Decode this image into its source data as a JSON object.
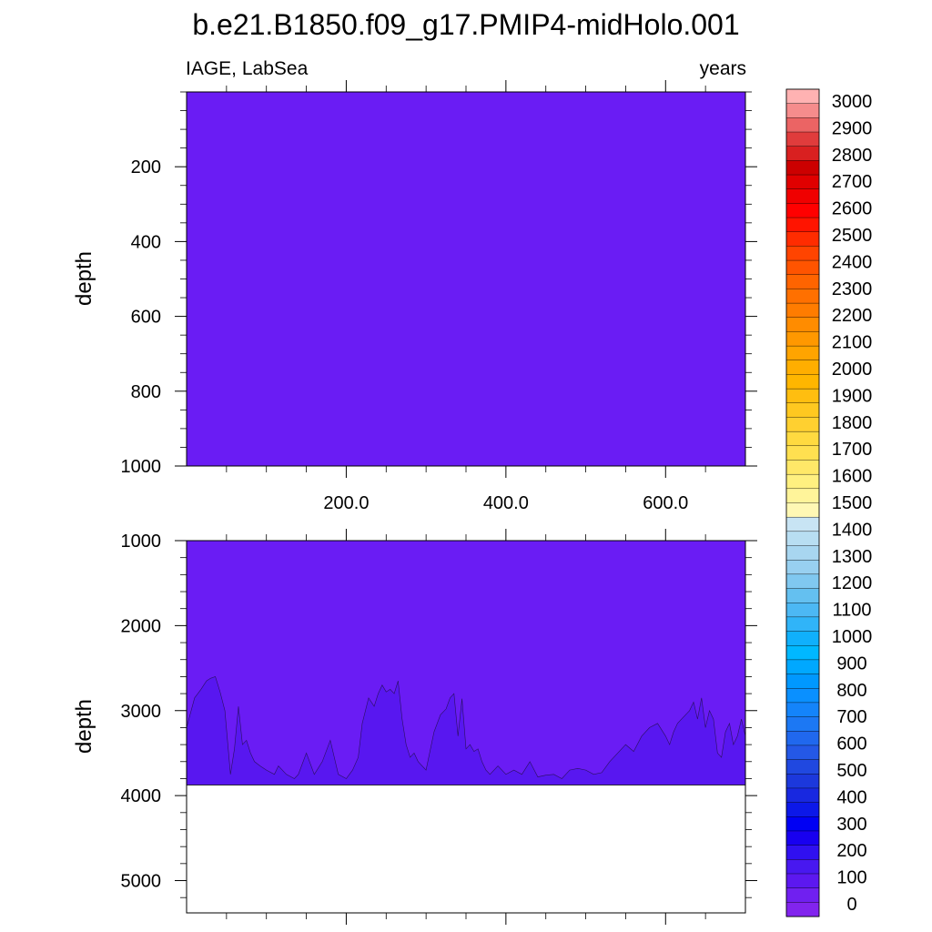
{
  "chart_data": {
    "type": "heatmap",
    "title": "b.e21.B1850.f09_g17.PMIP4-midHolo.001",
    "left_label": "IAGE, LabSea",
    "right_label": "years",
    "fill_color": "#6a1cf4",
    "deep_fill_color": "#5817f0",
    "missing_color": "#ffffff",
    "x": {
      "label": "",
      "range": [
        0,
        700
      ],
      "major_ticks": [
        200.0,
        400.0,
        600.0
      ],
      "tick_labels": [
        "200.0",
        "400.0",
        "600.0"
      ],
      "minor_ticks": [
        50,
        100,
        150,
        250,
        300,
        350,
        450,
        500,
        550,
        650
      ]
    },
    "panels": [
      {
        "name": "upper",
        "ylabel": "depth",
        "ylim": [
          0,
          1000
        ],
        "y_ticks": [
          200,
          400,
          600,
          800,
          1000
        ],
        "y_tick_labels": [
          "200",
          "400",
          "600",
          "800",
          "1000"
        ],
        "y_minor_step": 50
      },
      {
        "name": "lower",
        "ylabel": "depth",
        "ylim": [
          1000,
          5380
        ],
        "y_ticks": [
          1000,
          2000,
          3000,
          4000,
          5000
        ],
        "y_tick_labels": [
          "1000",
          "2000",
          "3000",
          "4000",
          "5000"
        ],
        "y_minor_step": 200,
        "data_bottom_depth": 3875,
        "contour_100": {
          "level": 100,
          "years": [
            0,
            10,
            18,
            25,
            30,
            36,
            42,
            48,
            55,
            60,
            65,
            70,
            75,
            80,
            85,
            92,
            100,
            110,
            115,
            125,
            135,
            140,
            150,
            160,
            170,
            180,
            190,
            200,
            208,
            215,
            220,
            228,
            235,
            240,
            245,
            250,
            255,
            260,
            265,
            270,
            275,
            280,
            285,
            290,
            300,
            310,
            318,
            325,
            330,
            335,
            340,
            345,
            350,
            355,
            360,
            365,
            370,
            375,
            380,
            390,
            400,
            410,
            420,
            430,
            440,
            450,
            460,
            470,
            480,
            490,
            500,
            510,
            520,
            530,
            540,
            550,
            560,
            570,
            580,
            590,
            600,
            605,
            610,
            615,
            620,
            625,
            630,
            635,
            640,
            645,
            650,
            655,
            660,
            665,
            670,
            675,
            680,
            685,
            690,
            695,
            700
          ],
          "depth": [
            3200,
            2850,
            2750,
            2650,
            2620,
            2600,
            2780,
            3000,
            3750,
            3450,
            2950,
            3400,
            3350,
            3500,
            3600,
            3650,
            3700,
            3750,
            3650,
            3750,
            3800,
            3750,
            3500,
            3750,
            3600,
            3350,
            3750,
            3800,
            3700,
            3550,
            3150,
            2850,
            2950,
            2800,
            2700,
            2780,
            2750,
            2800,
            2650,
            3100,
            3400,
            3550,
            3500,
            3600,
            3700,
            3250,
            3050,
            2980,
            2850,
            2800,
            3300,
            2860,
            3450,
            3400,
            3480,
            3450,
            3600,
            3700,
            3750,
            3650,
            3750,
            3700,
            3750,
            3600,
            3780,
            3760,
            3750,
            3800,
            3700,
            3680,
            3700,
            3750,
            3730,
            3600,
            3500,
            3400,
            3480,
            3300,
            3200,
            3150,
            3300,
            3400,
            3250,
            3150,
            3100,
            3050,
            3000,
            2900,
            3100,
            2850,
            3200,
            3000,
            3100,
            3500,
            3550,
            3250,
            3150,
            3400,
            3300,
            3100,
            3300
          ]
        }
      }
    ],
    "colorbar": {
      "levels": [
        "3000",
        "2900",
        "2800",
        "2700",
        "2600",
        "2500",
        "2400",
        "2300",
        "2200",
        "2100",
        "2000",
        "1900",
        "1800",
        "1700",
        "1600",
        "1500",
        "1400",
        "1300",
        "1200",
        "1100",
        "1000",
        "900",
        "800",
        "700",
        "600",
        "500",
        "400",
        "300",
        "200",
        "100",
        "0"
      ],
      "colors_top_to_bottom": [
        "#ffb2b2",
        "#f58c8c",
        "#eb6464",
        "#e03c3c",
        "#d92020",
        "#cc0000",
        "#e00000",
        "#f00000",
        "#ff0000",
        "#ff1400",
        "#ff2c00",
        "#ff4400",
        "#ff5400",
        "#ff6400",
        "#ff7000",
        "#ff7c00",
        "#ff8c00",
        "#ff9800",
        "#ffa400",
        "#ffae00",
        "#ffb600",
        "#ffbe10",
        "#ffc820",
        "#ffd030",
        "#ffda40",
        "#ffe050",
        "#ffe868",
        "#fff080",
        "#fff49a",
        "#fff8b4",
        "#c8e4f4",
        "#b8def2",
        "#a8d6f0",
        "#98d0f0",
        "#80c8f0",
        "#64c0f0",
        "#4cb8f4",
        "#30b4f8",
        "#10b0fc",
        "#00b8ff",
        "#00a8ff",
        "#0098ff",
        "#0a90ff",
        "#1484fa",
        "#1c78f4",
        "#2068ee",
        "#2458e6",
        "#2048e0",
        "#1c38dc",
        "#1828e0",
        "#0c18e8",
        "#0000f4",
        "#1800f0",
        "#3010f0",
        "#4818f0",
        "#5c18f0",
        "#7020f0",
        "#8224ee"
      ]
    }
  }
}
